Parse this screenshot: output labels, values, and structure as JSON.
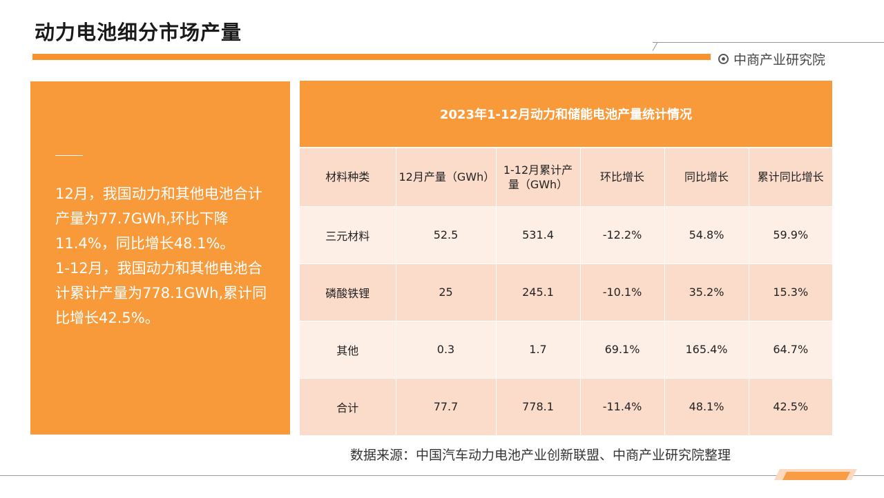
{
  "header": {
    "title": "动力电池细分市场产量",
    "brand": "中商产业研究院"
  },
  "summary": {
    "paragraph1": "12月，我国动力和其他电池合计产量为77.7GWh,环比下降11.4%，同比增长48.1%。",
    "paragraph2": "1-12月，我国动力和其他电池合计累计产量为778.1GWh,累计同比增长42.5%。"
  },
  "table": {
    "title": "2023年1-12月动力和储能电池产量统计情况",
    "headers": [
      "材料种类",
      "12月产量（GWh）",
      "1-12月累计产量（GWh）",
      "环比增长",
      "同比增长",
      "累计同比增长"
    ],
    "rows": [
      [
        "三元材料",
        "52.5",
        "531.4",
        "-12.2%",
        "54.8%",
        "59.9%"
      ],
      [
        "磷酸铁锂",
        "25",
        "245.1",
        "-10.1%",
        "35.2%",
        "15.3%"
      ],
      [
        "其他",
        "0.3",
        "1.7",
        "69.1%",
        "165.4%",
        "64.7%"
      ],
      [
        "合计",
        "77.7",
        "778.1",
        "-11.4%",
        "48.1%",
        "42.5%"
      ]
    ]
  },
  "footer": {
    "source": "数据来源：中国汽车动力电池产业创新联盟、中商产业研究院整理"
  },
  "colors": {
    "accent": "#f99a3a",
    "row_light": "#fdeee6",
    "row_dark": "#fbdccb"
  }
}
